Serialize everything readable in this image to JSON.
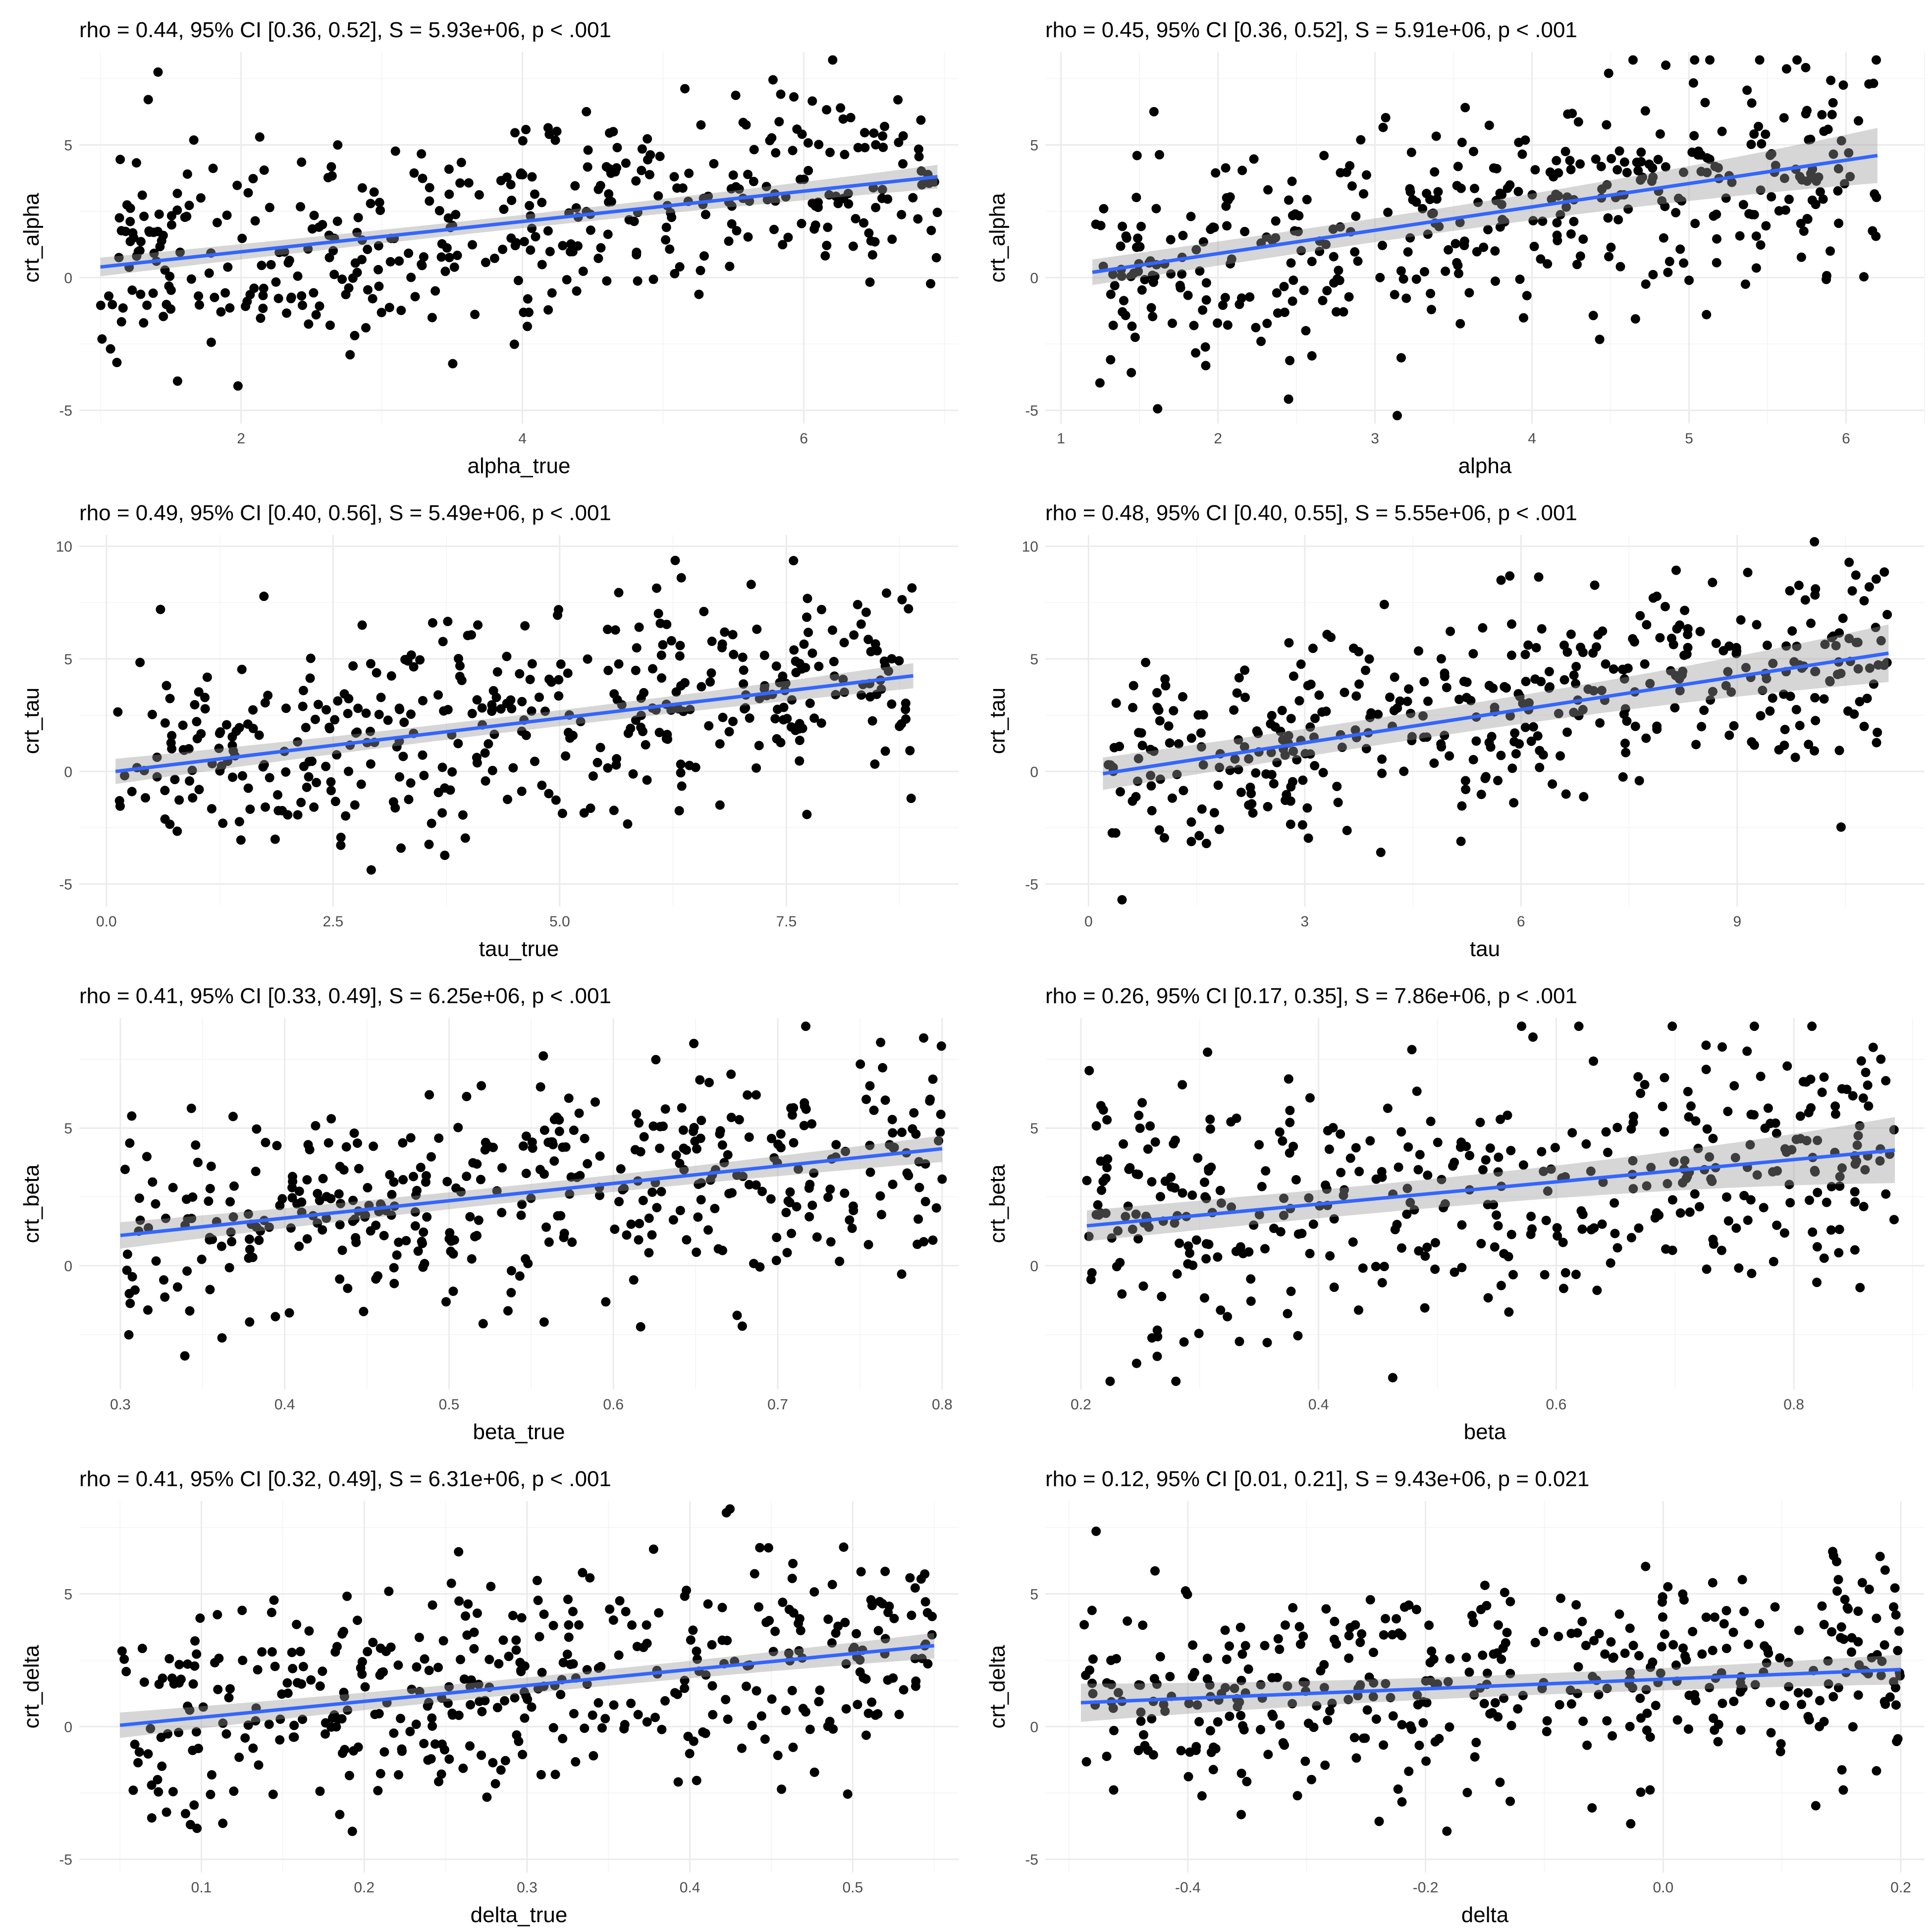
{
  "chart_data": [
    {
      "type": "scatter",
      "title": "rho = 0.44, 95% CI [0.36, 0.52], S = 5.93e+06, p < .001",
      "xlabel": "alpha_true",
      "ylabel": "crt_alpha",
      "xlim": [
        0.85,
        7.1
      ],
      "ylim": [
        -5.5,
        8.5
      ],
      "xticks": [
        2,
        4,
        6
      ],
      "xtick_labels": [
        "2",
        "4",
        "6"
      ],
      "yticks": [
        -5,
        0,
        5
      ],
      "ytick_labels": [
        "-5",
        "0",
        "5"
      ],
      "fit": {
        "x": [
          1.0,
          6.95
        ],
        "y": [
          0.4,
          3.8
        ],
        "ci_halfwidth": [
          0.22,
          0.28
        ]
      },
      "n_points": 420,
      "seed": 11,
      "noise_sd": 2.0,
      "grid": true,
      "legend": "none"
    },
    {
      "type": "scatter",
      "title": "rho = 0.45, 95% CI [0.36, 0.52], S = 5.91e+06, p < .001",
      "xlabel": "alpha",
      "ylabel": "crt_alpha",
      "xlim": [
        0.9,
        6.5
      ],
      "ylim": [
        -5.5,
        8.5
      ],
      "xticks": [
        1,
        2,
        3,
        4,
        5,
        6
      ],
      "xtick_labels": [
        "1",
        "2",
        "3",
        "4",
        "5",
        "6"
      ],
      "yticks": [
        -5,
        0,
        5
      ],
      "ytick_labels": [
        "-5",
        "0",
        "5"
      ],
      "fit": {
        "x": [
          1.2,
          6.2
        ],
        "y": [
          0.2,
          4.6
        ],
        "ci_halfwidth": [
          0.3,
          0.65
        ]
      },
      "n_points": 420,
      "seed": 23,
      "noise_sd": 2.0,
      "grid": true,
      "legend": "none"
    },
    {
      "type": "scatter",
      "title": "rho = 0.49, 95% CI [0.40, 0.56], S = 5.49e+06, p < .001",
      "xlabel": "tau_true",
      "ylabel": "crt_tau",
      "xlim": [
        -0.3,
        9.4
      ],
      "ylim": [
        -6.0,
        10.5
      ],
      "xticks": [
        0,
        2.5,
        5,
        7.5
      ],
      "xtick_labels": [
        "0.0",
        "2.5",
        "5.0",
        "7.5"
      ],
      "yticks": [
        -5,
        0,
        5,
        10
      ],
      "ytick_labels": [
        "-5",
        "0",
        "5",
        "10"
      ],
      "fit": {
        "x": [
          0.1,
          8.9
        ],
        "y": [
          0.0,
          4.25
        ],
        "ci_halfwidth": [
          0.35,
          0.35
        ]
      },
      "n_points": 420,
      "seed": 37,
      "noise_sd": 2.3,
      "grid": true,
      "legend": "none"
    },
    {
      "type": "scatter",
      "title": "rho = 0.48, 95% CI [0.40, 0.55], S = 5.55e+06, p < .001",
      "xlabel": "tau",
      "ylabel": "crt_tau",
      "xlim": [
        -0.6,
        11.6
      ],
      "ylim": [
        -6.0,
        10.5
      ],
      "xticks": [
        0,
        3,
        6,
        9
      ],
      "xtick_labels": [
        "0",
        "3",
        "6",
        "9"
      ],
      "yticks": [
        -5,
        0,
        5,
        10
      ],
      "ytick_labels": [
        "-5",
        "0",
        "5",
        "10"
      ],
      "fit": {
        "x": [
          0.2,
          11.1
        ],
        "y": [
          -0.1,
          5.25
        ],
        "ci_halfwidth": [
          0.45,
          0.8
        ]
      },
      "n_points": 420,
      "seed": 41,
      "noise_sd": 2.3,
      "grid": true,
      "legend": "none"
    },
    {
      "type": "scatter",
      "title": "rho = 0.41, 95% CI [0.33, 0.49], S = 6.25e+06, p < .001",
      "xlabel": "beta_true",
      "ylabel": "crt_beta",
      "xlim": [
        0.275,
        0.81
      ],
      "ylim": [
        -4.5,
        9.0
      ],
      "xticks": [
        0.3,
        0.4,
        0.5,
        0.6,
        0.7,
        0.8
      ],
      "xtick_labels": [
        "0.3",
        "0.4",
        "0.5",
        "0.6",
        "0.7",
        "0.8"
      ],
      "yticks": [
        0,
        5
      ],
      "ytick_labels": [
        "0",
        "5"
      ],
      "fit": {
        "x": [
          0.3,
          0.8
        ],
        "y": [
          1.1,
          4.25
        ],
        "ci_halfwidth": [
          0.3,
          0.3
        ]
      },
      "n_points": 420,
      "seed": 53,
      "noise_sd": 2.0,
      "grid": true,
      "legend": "none"
    },
    {
      "type": "scatter",
      "title": "rho = 0.26, 95% CI [0.17, 0.35], S = 7.86e+06, p < .001",
      "xlabel": "beta",
      "ylabel": "crt_beta",
      "xlim": [
        0.17,
        0.91
      ],
      "ylim": [
        -4.5,
        9.0
      ],
      "xticks": [
        0.2,
        0.4,
        0.6,
        0.8
      ],
      "xtick_labels": [
        "0.2",
        "0.4",
        "0.6",
        "0.8"
      ],
      "yticks": [
        0,
        5
      ],
      "ytick_labels": [
        "0",
        "5"
      ],
      "fit": {
        "x": [
          0.205,
          0.885
        ],
        "y": [
          1.45,
          4.2
        ],
        "ci_halfwidth": [
          0.35,
          0.75
        ]
      },
      "n_points": 420,
      "seed": 67,
      "noise_sd": 2.1,
      "grid": true,
      "legend": "none"
    },
    {
      "type": "scatter",
      "title": "rho = 0.41, 95% CI [0.32, 0.49], S = 6.31e+06, p < .001",
      "xlabel": "delta_true",
      "ylabel": "crt_delta",
      "xlim": [
        0.025,
        0.565
      ],
      "ylim": [
        -5.5,
        8.5
      ],
      "xticks": [
        0.1,
        0.2,
        0.3,
        0.4,
        0.5
      ],
      "xtick_labels": [
        "0.1",
        "0.2",
        "0.3",
        "0.4",
        "0.5"
      ],
      "yticks": [
        -5,
        0,
        5
      ],
      "ytick_labels": [
        "-5",
        "0",
        "5"
      ],
      "fit": {
        "x": [
          0.05,
          0.55
        ],
        "y": [
          0.05,
          3.05
        ],
        "ci_halfwidth": [
          0.3,
          0.3
        ]
      },
      "n_points": 420,
      "seed": 79,
      "noise_sd": 2.0,
      "grid": true,
      "legend": "none"
    },
    {
      "type": "scatter",
      "title": "rho = 0.12, 95% CI [0.01, 0.21], S = 9.43e+06, p = 0.021",
      "xlabel": "delta",
      "ylabel": "crt_delta",
      "xlim": [
        -0.52,
        0.22
      ],
      "ylim": [
        -5.5,
        8.5
      ],
      "xticks": [
        -0.4,
        -0.2,
        0.0,
        0.2
      ],
      "xtick_labels": [
        "-0.4",
        "-0.2",
        "0.0",
        "0.2"
      ],
      "yticks": [
        -5,
        0,
        5
      ],
      "ytick_labels": [
        "-5",
        "0",
        "5"
      ],
      "fit": {
        "x": [
          -0.49,
          0.2
        ],
        "y": [
          0.9,
          2.15
        ],
        "ci_halfwidth": [
          0.45,
          0.35
        ]
      },
      "n_points": 420,
      "seed": 97,
      "noise_sd": 2.1,
      "grid": true,
      "legend": "none"
    }
  ]
}
